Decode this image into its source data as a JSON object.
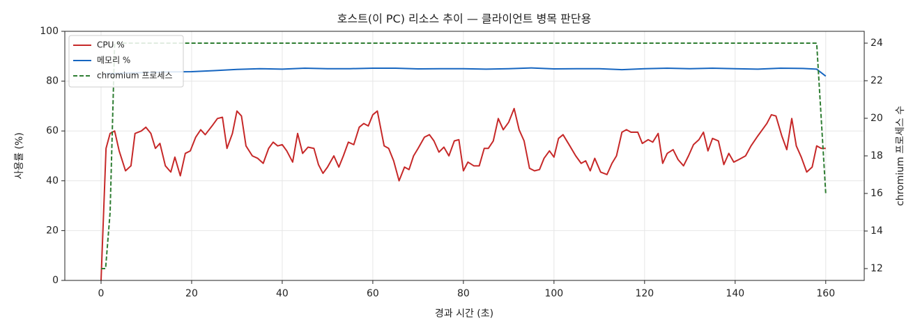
{
  "chart_data": {
    "type": "line",
    "title": "호스트(이 PC) 리소스 추이 — 클라이언트 병목 판단용",
    "xlabel": "경과 시간 (초)",
    "ylabel": "사용률 (%)",
    "y2label": "chromium 프로세스 수",
    "xlim": [
      -8,
      168.5
    ],
    "xticks": [
      0,
      20,
      40,
      60,
      80,
      100,
      120,
      140,
      160
    ],
    "ylim": [
      0,
      100
    ],
    "yticks": [
      0,
      20,
      40,
      60,
      80,
      100
    ],
    "y2lim": [
      11.37,
      24.63
    ],
    "y2ticks": [
      12,
      14,
      16,
      18,
      20,
      22,
      24
    ],
    "grid": true,
    "legend": "upper left",
    "series": [
      {
        "name": "CPU %",
        "color": "#c62828",
        "dash": false,
        "x": [
          0,
          1.1,
          2,
          3,
          4,
          5.4,
          6.6,
          7.5,
          8.9,
          9.9,
          11,
          12,
          13,
          14.2,
          15.4,
          16.3,
          17.5,
          18.6,
          19.7,
          20.9,
          22,
          23,
          24.5,
          25.7,
          26.8,
          27.8,
          29,
          30,
          31,
          32,
          33.4,
          34.6,
          35.8,
          37,
          38,
          39,
          40,
          41,
          42.3,
          43.4,
          44.5,
          45.7,
          47,
          48,
          49,
          50,
          51.4,
          52.5,
          53.5,
          54.6,
          55.8,
          57,
          58,
          59,
          60,
          61,
          62.5,
          63.5,
          64.6,
          65.8,
          67,
          68,
          69,
          70,
          71.4,
          72.5,
          73.5,
          74.6,
          75.7,
          76.8,
          78,
          79,
          80,
          81,
          82.3,
          83.5,
          84.6,
          85.5,
          86.6,
          87.7,
          88.8,
          90,
          91.2,
          92.3,
          93.4,
          94.6,
          95.7,
          96.8,
          97.8,
          99,
          100,
          101,
          102,
          103.5,
          104.8,
          106,
          107,
          108,
          109,
          110.3,
          111.7,
          112.8,
          113.8,
          115,
          116,
          117,
          118.5,
          119.5,
          120.8,
          121.8,
          123,
          124,
          125,
          126.3,
          127.4,
          128.6,
          129.7,
          130.8,
          132,
          133,
          134,
          135,
          136.3,
          137.5,
          138.6,
          139.7,
          140.8,
          142.3,
          143.5,
          145,
          146,
          147,
          148,
          149,
          150.3,
          151.4,
          152.5,
          153.5,
          154.6,
          155.8,
          157,
          158,
          159,
          160
        ],
        "values": [
          0,
          53,
          59,
          60,
          52,
          44,
          46,
          59,
          60,
          61.5,
          59,
          53,
          55,
          46,
          43.5,
          49.5,
          42,
          51,
          52,
          57.5,
          60.5,
          58.5,
          62,
          65,
          65.5,
          53,
          59,
          68,
          66,
          54,
          50,
          49,
          47,
          53,
          55.5,
          54,
          54.5,
          52,
          47.5,
          59,
          51,
          53.5,
          53,
          46.5,
          43,
          45.5,
          50,
          45.5,
          50,
          55.5,
          54.5,
          61.5,
          63,
          62,
          66.5,
          68,
          54,
          53,
          48,
          40,
          45.5,
          44.5,
          50,
          53,
          57.5,
          58.5,
          56,
          51.5,
          53.5,
          50,
          56,
          56.5,
          44,
          47.5,
          46,
          46,
          53,
          53,
          56,
          65,
          60.5,
          63.5,
          69,
          60.5,
          56,
          45,
          44,
          44.5,
          49,
          52,
          49.5,
          57,
          58.5,
          54,
          50,
          47,
          48,
          44,
          49,
          43.5,
          42.5,
          47,
          50,
          59.5,
          60.5,
          59.5,
          59.5,
          55,
          56.5,
          55.5,
          59,
          47,
          51,
          52.5,
          48.5,
          46,
          50,
          54.5,
          56.5,
          59.5,
          52,
          57,
          56,
          46.5,
          51,
          47.5,
          48.5,
          50,
          54,
          58,
          60.5,
          63,
          66.5,
          66,
          58,
          52.5,
          65,
          54,
          49.5,
          43.5,
          45.5,
          54,
          53,
          53
        ]
      },
      {
        "name": "메모리 %",
        "color": "#1565c0",
        "dash": false,
        "x": [
          1,
          5,
          10,
          15,
          20,
          25,
          30,
          35,
          40,
          45,
          50,
          55,
          60,
          65,
          70,
          75,
          80,
          85,
          90,
          95,
          100,
          105,
          110,
          115,
          120,
          125,
          130,
          135,
          140,
          145,
          150,
          155,
          158,
          160
        ],
        "values": [
          83,
          83.2,
          83.5,
          83.7,
          83.8,
          84.2,
          84.7,
          85,
          84.8,
          85.2,
          85,
          85,
          85.2,
          85.2,
          84.9,
          85,
          85,
          84.8,
          85,
          85.3,
          84.9,
          85,
          85,
          84.6,
          85,
          85.2,
          85,
          85.2,
          85,
          84.8,
          85.2,
          85.1,
          84.8,
          82
        ]
      },
      {
        "name": "chromium 프로세스",
        "color": "#2e7d32",
        "dash": true,
        "axis": "y2",
        "x": [
          0,
          1,
          2,
          3,
          158,
          160
        ],
        "values": [
          12,
          12,
          15,
          24,
          24,
          16
        ]
      }
    ]
  }
}
